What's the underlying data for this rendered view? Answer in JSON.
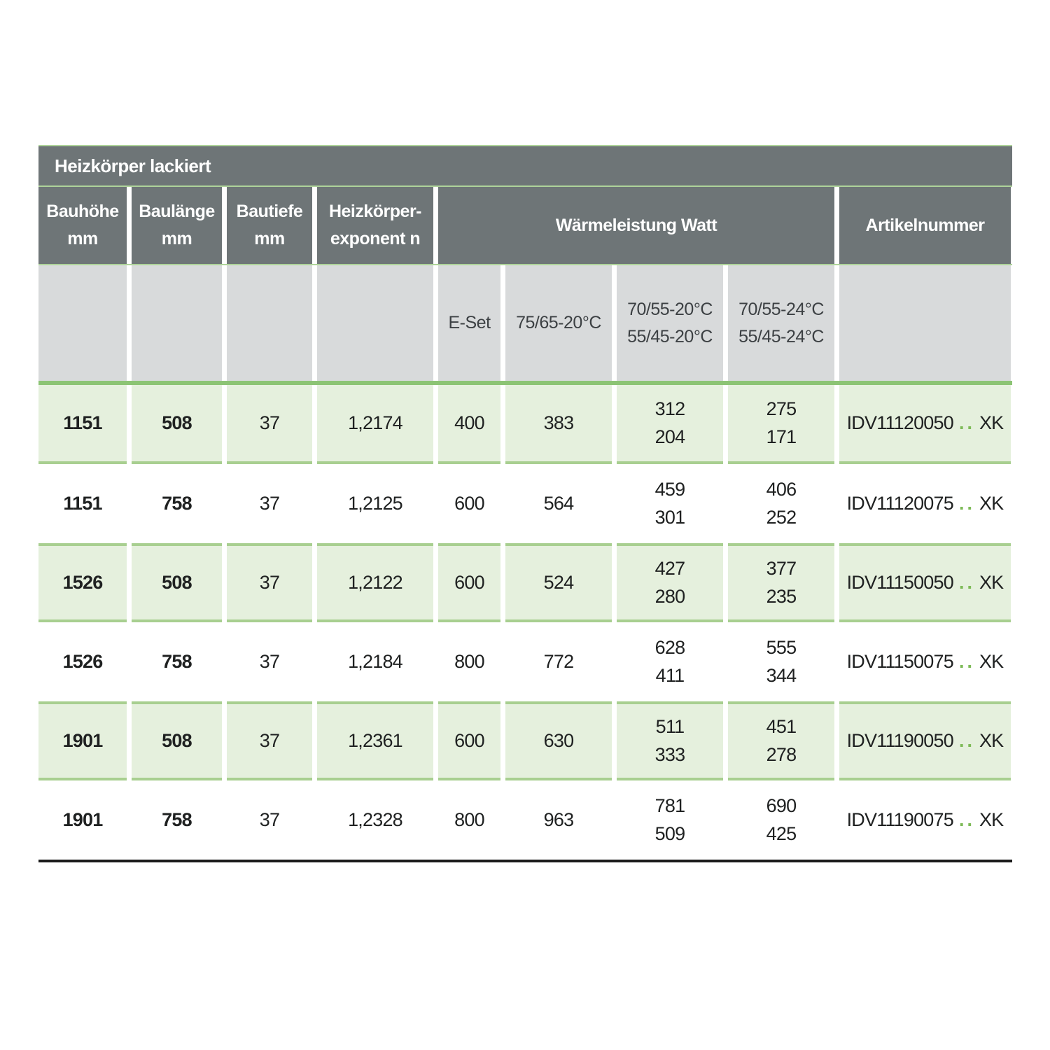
{
  "table": {
    "title": "Heizkörper lackiert",
    "columns": {
      "bauhoehe": {
        "line1": "Bauhöhe",
        "line2": "mm"
      },
      "baulaenge": {
        "line1": "Baulänge",
        "line2": "mm"
      },
      "bautiefe": {
        "line1": "Bautiefe",
        "line2": "mm"
      },
      "exponent": {
        "line1": "Heizkörper-",
        "line2": "exponent n"
      },
      "watt_group": "Wärmeleistung Watt",
      "artikelnummer": "Artikelnummer"
    },
    "subheaders": {
      "eset": "E-Set",
      "t7565": "75/65-20°C",
      "t20_line1": "70/55-20°C",
      "t20_line2": "55/45-20°C",
      "t24_line1": "70/55-24°C",
      "t24_line2": "55/45-24°C"
    },
    "rows": [
      {
        "shade": "green",
        "bauhoehe": "1151",
        "baulaenge": "508",
        "bautiefe": "37",
        "exponent": "1,2174",
        "eset": "400",
        "w7565": "383",
        "w20_a": "312",
        "w20_b": "204",
        "w24_a": "275",
        "w24_b": "171",
        "artikel_prefix": "IDV11120050",
        "artikel_dots": "..",
        "artikel_suffix": "XK"
      },
      {
        "shade": "white",
        "bauhoehe": "1151",
        "baulaenge": "758",
        "bautiefe": "37",
        "exponent": "1,2125",
        "eset": "600",
        "w7565": "564",
        "w20_a": "459",
        "w20_b": "301",
        "w24_a": "406",
        "w24_b": "252",
        "artikel_prefix": "IDV11120075",
        "artikel_dots": "..",
        "artikel_suffix": "XK"
      },
      {
        "shade": "green",
        "bauhoehe": "1526",
        "baulaenge": "508",
        "bautiefe": "37",
        "exponent": "1,2122",
        "eset": "600",
        "w7565": "524",
        "w20_a": "427",
        "w20_b": "280",
        "w24_a": "377",
        "w24_b": "235",
        "artikel_prefix": "IDV11150050",
        "artikel_dots": "..",
        "artikel_suffix": "XK"
      },
      {
        "shade": "white",
        "bauhoehe": "1526",
        "baulaenge": "758",
        "bautiefe": "37",
        "exponent": "1,2184",
        "eset": "800",
        "w7565": "772",
        "w20_a": "628",
        "w20_b": "411",
        "w24_a": "555",
        "w24_b": "344",
        "artikel_prefix": "IDV11150075",
        "artikel_dots": "..",
        "artikel_suffix": "XK"
      },
      {
        "shade": "green",
        "bauhoehe": "1901",
        "baulaenge": "508",
        "bautiefe": "37",
        "exponent": "1,2361",
        "eset": "600",
        "w7565": "630",
        "w20_a": "511",
        "w20_b": "333",
        "w24_a": "451",
        "w24_b": "278",
        "artikel_prefix": "IDV11190050",
        "artikel_dots": "..",
        "artikel_suffix": "XK"
      },
      {
        "shade": "white",
        "bauhoehe": "1901",
        "baulaenge": "758",
        "bautiefe": "37",
        "exponent": "1,2328",
        "eset": "800",
        "w7565": "963",
        "w20_a": "781",
        "w20_b": "509",
        "w24_a": "690",
        "w24_b": "425",
        "artikel_prefix": "IDV11190075",
        "artikel_dots": "..",
        "artikel_suffix": "XK"
      }
    ],
    "colors": {
      "header_gray": "#6e7577",
      "subheader_gray": "#d8dadb",
      "row_green": "#e5f0dd",
      "row_border_green": "#a8cf90",
      "separator_green": "#8cc474",
      "dot_green": "#7dba57",
      "bottom_rule_black": "#1b1b1b"
    }
  }
}
